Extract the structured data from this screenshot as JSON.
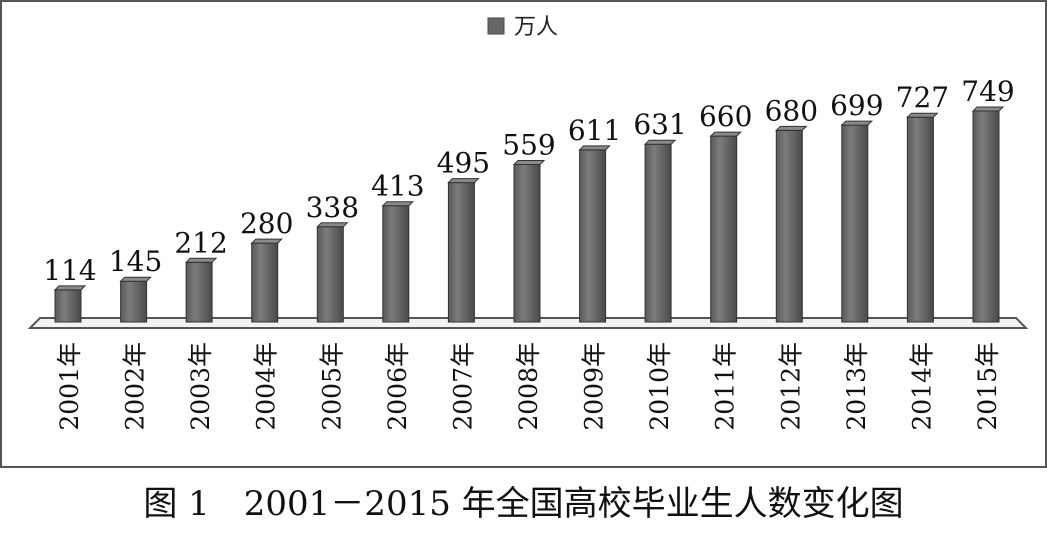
{
  "caption": "图 1　2001－2015 年全国高校毕业生人数变化图",
  "chart_data": {
    "type": "bar",
    "title": "",
    "xlabel": "",
    "ylabel": "",
    "categories": [
      "2001年",
      "2002年",
      "2003年",
      "2004年",
      "2005年",
      "2006年",
      "2007年",
      "2008年",
      "2009年",
      "2010年",
      "2011年",
      "2012年",
      "2013年",
      "2014年",
      "2015年"
    ],
    "series": [
      {
        "name": "万人",
        "values": [
          114,
          145,
          212,
          280,
          338,
          413,
          495,
          559,
          611,
          631,
          660,
          680,
          699,
          727,
          749
        ],
        "color": "#6e6e6e"
      }
    ],
    "ylim": [
      0,
      820
    ],
    "grid": false,
    "legend_position": "top-center",
    "data_labels": true
  }
}
